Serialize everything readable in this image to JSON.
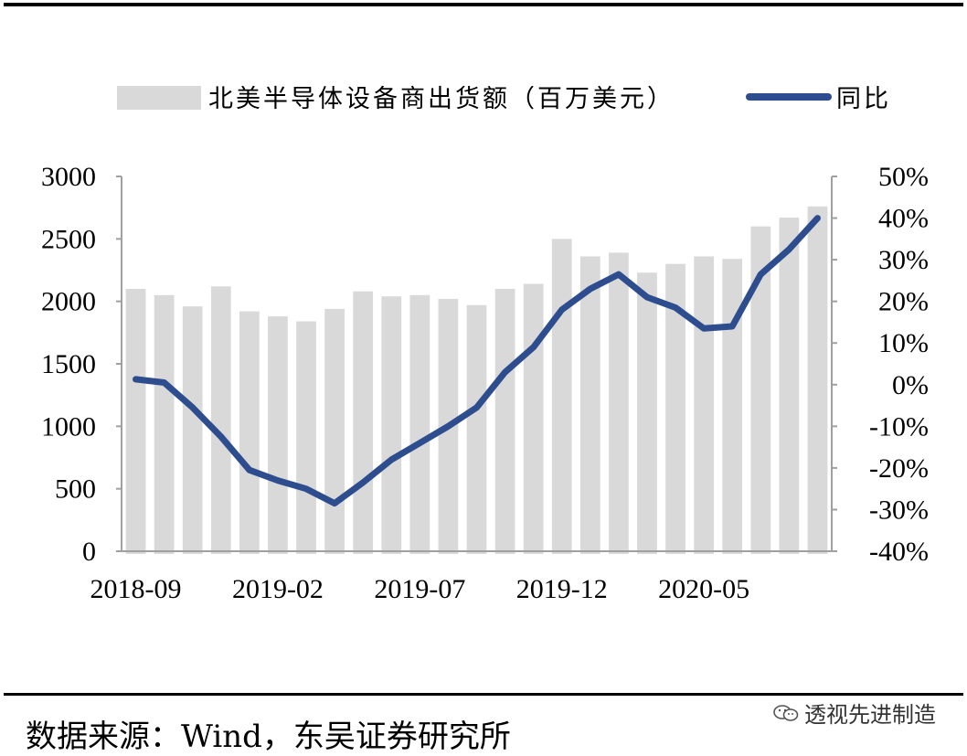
{
  "chart_data": {
    "type": "bar+line",
    "title": "",
    "categories": [
      "2018-09",
      "2018-10",
      "2018-11",
      "2018-12",
      "2019-01",
      "2019-02",
      "2019-03",
      "2019-04",
      "2019-05",
      "2019-06",
      "2019-07",
      "2019-08",
      "2019-09",
      "2019-10",
      "2019-11",
      "2019-12",
      "2020-01",
      "2020-02",
      "2020-03",
      "2020-04",
      "2020-05",
      "2020-06",
      "2020-07",
      "2020-08",
      "2020-09"
    ],
    "x_tick_labels": [
      "2018-09",
      "2019-02",
      "2019-07",
      "2019-12",
      "2020-05"
    ],
    "series": [
      {
        "name": "北美半导体设备商出货额（百万美元）",
        "type": "bar",
        "axis": "left",
        "color": "#d9d9d9",
        "values": [
          2100,
          2050,
          1960,
          2120,
          1920,
          1880,
          1840,
          1940,
          2080,
          2040,
          2050,
          2020,
          1970,
          2100,
          2140,
          2500,
          2360,
          2390,
          2230,
          2300,
          2360,
          2340,
          2600,
          2670,
          2760
        ]
      },
      {
        "name": "同比",
        "type": "line",
        "axis": "right",
        "color": "#2e4d8f",
        "values": [
          1.3,
          0.5,
          -5.5,
          -12.5,
          -20.5,
          -23.0,
          -25.0,
          -28.5,
          -23.5,
          -18.0,
          -14.0,
          -10.0,
          -5.5,
          3.0,
          9.0,
          18.0,
          23.0,
          26.5,
          21.0,
          18.5,
          13.5,
          14.0,
          26.5,
          32.5,
          40.0
        ]
      }
    ],
    "y_left": {
      "range": [
        0,
        3000
      ],
      "ticks": [
        "0",
        "500",
        "1000",
        "1500",
        "2000",
        "2500",
        "3000"
      ]
    },
    "y_right": {
      "range": [
        -40,
        50
      ],
      "ticks": [
        "-40%",
        "-30%",
        "-20%",
        "-10%",
        "0%",
        "10%",
        "20%",
        "30%",
        "40%",
        "50%"
      ]
    },
    "grid": false,
    "legend_position": "top"
  },
  "footer": {
    "source": "数据来源：Wind，东吴证券研究所",
    "watermark": "透视先进制造"
  }
}
